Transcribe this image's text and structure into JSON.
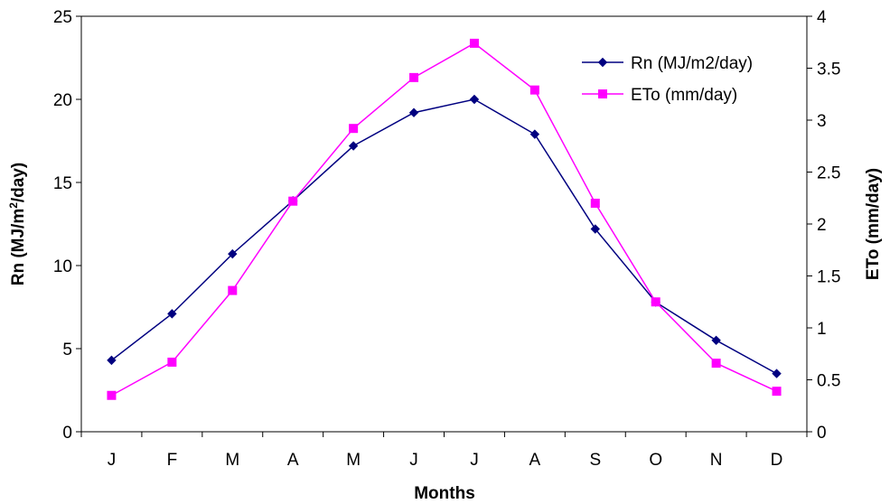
{
  "chart_data": {
    "type": "line",
    "categories": [
      "J",
      "F",
      "M",
      "A",
      "M",
      "J",
      "J",
      "A",
      "S",
      "O",
      "N",
      "D"
    ],
    "xlabel": "Months",
    "ylabel_left": {
      "main": "Rn (MJ/m",
      "sup": "2",
      "end": "/day)"
    },
    "ylabel_right": "ETo (mm/day)",
    "ylim_left": [
      0,
      25
    ],
    "yticks_left": [
      0,
      5,
      10,
      15,
      20,
      25
    ],
    "ylim_right": [
      0,
      4
    ],
    "yticks_right": [
      "0",
      "0.5",
      "1",
      "1.5",
      "2",
      "2.5",
      "3",
      "3.5",
      "4"
    ],
    "grid": false,
    "legend_position": "top-right",
    "series": [
      {
        "name": "Rn (MJ/m2/day)",
        "axis": "left",
        "color": "#000080",
        "marker": "diamond",
        "values": [
          4.3,
          7.1,
          10.7,
          13.9,
          17.2,
          19.2,
          20.0,
          17.9,
          12.2,
          7.8,
          5.5,
          3.5
        ]
      },
      {
        "name": "ETo (mm/day)",
        "axis": "right",
        "color": "#ff00ff",
        "marker": "square",
        "values": [
          0.35,
          0.67,
          1.36,
          2.22,
          2.92,
          3.41,
          3.74,
          3.29,
          2.2,
          1.25,
          0.66,
          0.39
        ]
      }
    ]
  }
}
